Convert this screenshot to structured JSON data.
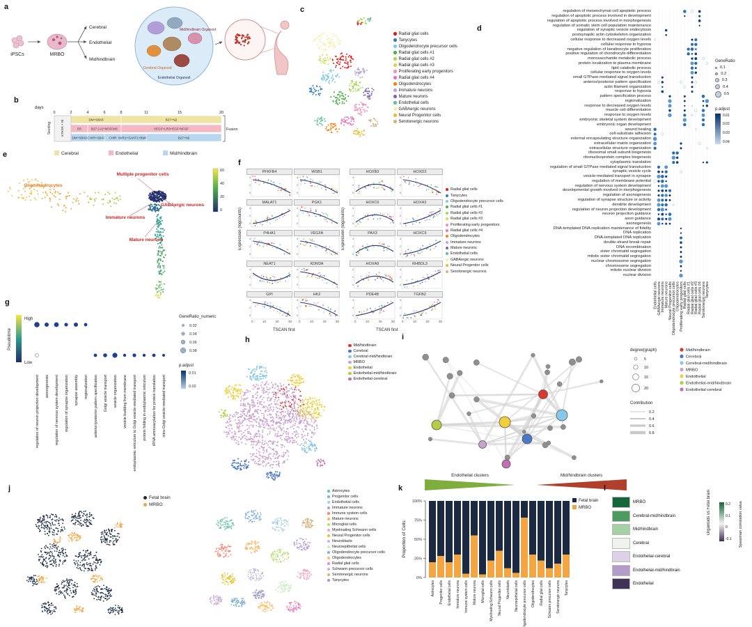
{
  "sample_groups": [
    {
      "label": "Mid/hindbrain",
      "color": "#d93a2b"
    },
    {
      "label": "Cerebral",
      "color": "#4a78c4"
    },
    {
      "label": "Cerebral-mid/hindbrain",
      "color": "#85c8ea"
    },
    {
      "label": "MRBO",
      "color": "#c9a2d0"
    },
    {
      "label": "Endothelial",
      "color": "#f0cf3a"
    },
    {
      "label": "Endothelial-mid/hindbrain",
      "color": "#b5cc45"
    },
    {
      "label": "Endothelial-cerebral",
      "color": "#c06fb0"
    }
  ],
  "cell_types": [
    {
      "label": "Radial glial cells",
      "color": "#e41a1c"
    },
    {
      "label": "Tanycytes",
      "color": "#377eb8"
    },
    {
      "label": "Oligodendrocyte precursor cells",
      "color": "#7fc9e8"
    },
    {
      "label": "Radial glial cells #1",
      "color": "#4daf4a"
    },
    {
      "label": "Radial glial cells #2",
      "color": "#a6d854"
    },
    {
      "label": "Radial glial cells #3",
      "color": "#cddc55"
    },
    {
      "label": "Proliferating early progenitors",
      "color": "#f48fb1"
    },
    {
      "label": "Radial glial cells #4",
      "color": "#e574bc"
    },
    {
      "label": "Oligodendrocytes",
      "color": "#ff7f0e"
    },
    {
      "label": "Immature neurons",
      "color": "#b8a8d8"
    },
    {
      "label": "Mature neurons",
      "color": "#7b68ae"
    },
    {
      "label": "Endothelial cells",
      "color": "#5fbf9f"
    },
    {
      "label": "GABAergic neurons",
      "color": "#f5f0a8"
    },
    {
      "label": "Neural Progenitor cells",
      "color": "#e0c13a"
    },
    {
      "label": "Serotonergic neurons",
      "color": "#d4b483"
    }
  ],
  "panels": {
    "a": {
      "label": "a",
      "ipsc_label": "iPSCs",
      "mrbo_label": "MRBO",
      "branches": [
        "Cerebral",
        "Endothelial",
        "Midhindbrain"
      ],
      "organoid_labels": [
        "Mid/hindbrain Organoid",
        "Cerebral Organoid",
        "Endothelial Organoid"
      ]
    },
    "b": {
      "label": "b",
      "axis_label": "days",
      "day_ticks": [
        0,
        2,
        4,
        6,
        8,
        11,
        15,
        20
      ],
      "seeding_label": "Seeding",
      "pre_segment_label": "mTeSR + Ri",
      "fusion_label": "Fusion",
      "rows": [
        {
          "name": "Cerebral",
          "color": "#efe3a5",
          "segments": [
            {
              "text": "DM+SB43",
              "from": 2,
              "to": 8
            },
            {
              "text": "B27+N2",
              "from": 8,
              "to": 20
            }
          ]
        },
        {
          "name": "Endothelial",
          "color": "#f3bac5",
          "segments": [
            {
              "text": "E6",
              "from": 2,
              "to": 4
            },
            {
              "text": "B27 (-A)+hESFMS",
              "from": 4,
              "to": 8
            },
            {
              "text": "VEGF+LR3+EGF+bFGF",
              "from": 8,
              "to": 20
            }
          ]
        },
        {
          "name": "Mid/hindbrain",
          "color": "#b9d6ef",
          "segments": [
            {
              "text": "DM+SB43",
              "from": 2,
              "to": 4
            },
            {
              "text": "CHIR+SB43",
              "from": 4,
              "to": 6
            },
            {
              "text": "CHIR",
              "from": 6,
              "to": 8
            },
            {
              "text": "IWR1+SANT1+BMP4",
              "from": 8,
              "to": 11
            },
            {
              "text": "B27+N2",
              "from": 11,
              "to": 20
            }
          ]
        }
      ],
      "legend": [
        {
          "label": "Cerebral",
          "color": "#efe3a5"
        },
        {
          "label": "Endothelial",
          "color": "#f3bac5"
        },
        {
          "label": "Mid/hindbrain",
          "color": "#b9d6ef"
        }
      ]
    },
    "c": {
      "label": "c"
    },
    "d": {
      "label": "d",
      "terms": [
        "regulation of mesenchymal cell apoptotic process",
        "regulation of apoptotic process involved in development",
        "regulation of apoptotic process involved in morphogenesis",
        "regulation of somatic stem cell population maintenance",
        "regulation of synaptic vesicle endocytosis",
        "postsynaptic actin cytoskeleton organization",
        "cellular response to decreased oxygen levels",
        "cellular response to hypoxia",
        "negative regulation of keratinocyte proliferation",
        "positive regulation of chondrocyte differentiation",
        "monosaccharide metabolic process",
        "protein localization to plasma membrane",
        "lipid catabolic process",
        "cellular response to oxygen levels",
        "small GTPase-mediated signal transduction",
        "anterior/posterior pattern specification",
        "actin filament organization",
        "response to hypoxia",
        "pattern specification process",
        "regionalization",
        "response to decreased oxygen levels",
        "muscle cell differentiation",
        "response to oxygen levels",
        "embryonic skeletal system development",
        "embryonic organ development",
        "wound healing",
        "cell-substrate adhesion",
        "external encapsulating structure organization",
        "extracellular matrix organization",
        "extracellular structure organization",
        "ribosomal small subunit biogenesis",
        "ribonucleoprotein complex biogenesis",
        "cytoplasmic translation",
        "regulation of small GTPase mediated signal transduction",
        "synaptic vesicle cycle",
        "vesicle-mediated transport in synapse",
        "regulation of membrane potential",
        "regulation of nervous system development",
        "developmental growth involved in morphogenesis",
        "regulation of axonogenesis",
        "regulation of synapse structure or activity",
        "dendrite development",
        "regulation of neuron projection development",
        "neuron projection guidance",
        "axon guidance",
        "axonogenesis",
        "DNA-templated DNA replication maintenance of fidelity",
        "DNA replication",
        "DNA-templated DNA replication",
        "double-strand break repair",
        "DNA recombination",
        "sister chromatid segregation",
        "mitotic sister chromatid segregation",
        "nuclear chromosome segregation",
        "chromosome segregation",
        "mitotic nuclear division",
        "nuclear division"
      ],
      "columns": [
        "Endothelial cells",
        "GABAergic neurons",
        "Immature neurons",
        "Mature neurons",
        "Neural Progenitor cells",
        "Oligodendrocyte precursor cells",
        "Oligodendrocytes",
        "Proliferating early progenitors",
        "Radial glial cells",
        "Radial glial cells #1",
        "Radial glial cells #2",
        "Radial glial cells #3",
        "Radial glial cells #4",
        "Serotonergic neurons",
        "Tanycytes"
      ],
      "gene_ratio_legend": {
        "title": "GeneRatio",
        "values": [
          "0.1",
          "0.2",
          "0.3",
          "0.4",
          "0.5"
        ]
      },
      "p_adjust_legend": {
        "title": "p.adjust",
        "values": [
          "0.01",
          "0.02",
          "0.03",
          "0.04"
        ]
      },
      "blocks": [
        {
          "rows": [
            0,
            3
          ],
          "cols": [
            12
          ]
        },
        {
          "rows": [
            0,
            1
          ],
          "cols": [
            8
          ]
        },
        {
          "rows": [
            4,
            5
          ],
          "cols": [
            3
          ]
        },
        {
          "rows": [
            6,
            13
          ],
          "cols": [
            10,
            11
          ]
        },
        {
          "rows": [
            8,
            9
          ],
          "cols": [
            9
          ]
        },
        {
          "rows": [
            14,
            17
          ],
          "cols": [
            2,
            10
          ]
        },
        {
          "rows": [
            18,
            22
          ],
          "cols": [
            4,
            8,
            13
          ]
        },
        {
          "rows": [
            19,
            20
          ],
          "cols": [
            14
          ]
        },
        {
          "rows": [
            23,
            24
          ],
          "cols": [
            8,
            13
          ]
        },
        {
          "rows": [
            25,
            29
          ],
          "cols": [
            0
          ]
        },
        {
          "rows": [
            28,
            29
          ],
          "cols": [
            7
          ]
        },
        {
          "rows": [
            30,
            32
          ],
          "cols": [
            5,
            6
          ]
        },
        {
          "rows": [
            32,
            32
          ],
          "cols": [
            13,
            14
          ]
        },
        {
          "rows": [
            33,
            36
          ],
          "cols": [
            1,
            3
          ]
        },
        {
          "rows": [
            34,
            36
          ],
          "cols": [
            2
          ]
        },
        {
          "rows": [
            37,
            45
          ],
          "cols": [
            1,
            2,
            3
          ]
        },
        {
          "rows": [
            38,
            40
          ],
          "cols": [
            4
          ]
        },
        {
          "rows": [
            43,
            45
          ],
          "cols": [
            4
          ]
        },
        {
          "rows": [
            46,
            56
          ],
          "cols": [
            7
          ]
        }
      ]
    },
    "e": {
      "label": "e",
      "annotations": [
        {
          "text": "Oligodendrocytes",
          "color": "#e87722"
        },
        {
          "text": "Multiple progenitor cells",
          "color": "#cc2222"
        },
        {
          "text": "GABAergic neurons",
          "color": "#cc2222"
        },
        {
          "text": "Immature neurons",
          "color": "#cc2222"
        },
        {
          "text": "Mature neurons",
          "color": "#cc2222"
        }
      ],
      "colorbar_ticks": [
        "60",
        "40",
        "20",
        "0"
      ]
    },
    "f": {
      "label": "f",
      "left_genes": [
        "PFKFB4",
        "WSB1",
        "MALAT1",
        "PGK1",
        "P4HA1",
        "VEGFA",
        "NEAT1",
        "KDM3A",
        "GPI",
        "HK2"
      ],
      "right_genes": [
        "HOXB3",
        "HOXD3",
        "HOXC6",
        "HOXA3",
        "PAX3",
        "HOXC9",
        "HOXA9",
        "RHBDL3",
        "PDE4B",
        "TGFB2"
      ],
      "ylabel": "Expression (logcounts)",
      "xlabel": "TSCAN first",
      "xticks": [
        "0",
        "10",
        "20",
        "30"
      ]
    },
    "g": {
      "label": "g",
      "pseudotime": {
        "title": "Pseudotime",
        "high": "High",
        "low": "Low"
      },
      "terms": [
        "regulation of neuron projection development",
        "axonogenesis",
        "regulation of nervous system development",
        "regulation of synapse organization",
        "synapse assembly",
        "regionalization",
        "anterior/posterior pattern specification",
        "Golgi vesicle transport",
        "vesicle organization",
        "vesicle budding from membrane",
        "endoplasmic reticulum to Golgi vesicle-mediated transport",
        "protein folding in endoplasmic reticulum",
        "tRNA aminoacylation for protein translation",
        "intra-Golgi vesicle-mediated transport"
      ],
      "dots": [
        [
          0,
          0,
          3.8
        ],
        [
          1,
          0,
          3.0
        ],
        [
          2,
          0,
          3.4
        ],
        [
          3,
          0,
          2.6
        ],
        [
          4,
          0,
          3.0
        ],
        [
          5,
          0,
          2.4
        ],
        [
          6,
          1,
          2.4
        ],
        [
          7,
          1,
          2.8
        ],
        [
          8,
          1,
          3.6
        ],
        [
          9,
          1,
          2.2
        ],
        [
          10,
          1,
          2.6
        ],
        [
          11,
          1,
          2.2
        ],
        [
          12,
          1,
          2.4
        ],
        [
          13,
          1,
          2.0
        ]
      ],
      "gene_ratio_legend": {
        "title": "GeneRatio_numeric",
        "values": [
          "0.02",
          "0.04",
          "0.06",
          "0.08"
        ]
      },
      "p_adjust_legend": {
        "title": "p.adjust",
        "values": [
          "0.01",
          "0.02"
        ]
      }
    },
    "h": {
      "label": "h"
    },
    "i": {
      "label": "i",
      "degree_legend": {
        "title": "degree(graph)",
        "values": [
          "5",
          "10",
          "15",
          "20"
        ]
      },
      "contribution_legend": {
        "title": "Contribution",
        "values": [
          "0.2",
          "0.4",
          "0.6",
          "0.8"
        ]
      },
      "arrows": [
        {
          "text": "Endothelial clusters",
          "color": "#7fae3f"
        },
        {
          "text": "Mid/hindbrain clusters",
          "color": "#b0402c"
        }
      ]
    },
    "j": {
      "label": "j",
      "sample_legend": [
        {
          "label": "Fetal brain",
          "color": "#1b2a41"
        },
        {
          "label": "MRBO",
          "color": "#f2a541"
        }
      ],
      "cell_legend": [
        {
          "label": "Astrocytes",
          "color": "#66c2a5"
        },
        {
          "label": "Progenitor cells",
          "color": "#7bafde"
        },
        {
          "label": "Endothelial cells",
          "color": "#a6cee3"
        },
        {
          "label": "Immature neurons",
          "color": "#b39ddb"
        },
        {
          "label": "Immune system cells",
          "color": "#fb8072"
        },
        {
          "label": "Mature neurons",
          "color": "#fdb462"
        },
        {
          "label": "Microglial cells",
          "color": "#b3de69"
        },
        {
          "label": "Myelinating Schwann cells",
          "color": "#f4a6c8"
        },
        {
          "label": "Neural Progenitor cells",
          "color": "#e6c229"
        },
        {
          "label": "Neuroblasts",
          "color": "#bebada"
        },
        {
          "label": "Neuroepithelial cells",
          "color": "#ccebc5"
        },
        {
          "label": "Oligodendrocyte precursor cells",
          "color": "#80b1d3"
        },
        {
          "label": "Oligodendrocytes",
          "color": "#fdbf6f"
        },
        {
          "label": "Radial glial cells",
          "color": "#e78ac3"
        },
        {
          "label": "Schwann precursor cells",
          "color": "#cab2d6"
        },
        {
          "label": "Serotonergic neurons",
          "color": "#d4b483"
        },
        {
          "label": "Tanycytes",
          "color": "#9e9ac8"
        }
      ]
    },
    "k": {
      "label": "k",
      "ylabel": "Proportion of Cells",
      "yticks": [
        "100%",
        "75%",
        "50%",
        "25%",
        "0%"
      ]
    },
    "l": {
      "label": "l",
      "title": "Organoids vs Fetal brain",
      "rows": [
        {
          "label": "MRBO",
          "color": "#17653a"
        },
        {
          "label": "Cerebral-mid/hindbrain",
          "color": "#4e9b62"
        },
        {
          "label": "Mid/hindbrain",
          "color": "#a5cfa5"
        },
        {
          "label": "Cerebral",
          "color": "#eef3ee"
        },
        {
          "label": "Endothelial-cerebral",
          "color": "#dcd1e6"
        },
        {
          "label": "Endothelial-mid/hindbrain",
          "color": "#b39cc7"
        },
        {
          "label": "Endothelial",
          "color": "#403156"
        }
      ],
      "scale": {
        "title": "Spearman correlation value",
        "ticks": [
          "0.2",
          "0.1",
          "0",
          "-0.1"
        ]
      }
    }
  },
  "chart_data": {
    "type": "bar",
    "stacked": true,
    "title": "Proportion of Cells",
    "ylabel": "Proportion of Cells",
    "ylim": [
      0,
      100
    ],
    "legend_position": "top-right",
    "categories": [
      "Astrocytes",
      "Progenitor cells",
      "Endothelial cells",
      "Immature neurons",
      "Immune system cells",
      "Mature neurons",
      "Microglial cells",
      "Myelinating Schwann cells",
      "Neural Progenitor cells",
      "Neuroblasts",
      "Neuroepithelial cells",
      "Oligodendrocyte precursor cells",
      "Oligodendrocytes",
      "Radial glial cells",
      "Schwann precursor cells",
      "Serotonergic neurons",
      "Tanycytes"
    ],
    "series": [
      {
        "name": "Fetal brain",
        "values": [
          80,
          72,
          80,
          70,
          95,
          45,
          96,
          78,
          65,
          88,
          94,
          22,
          70,
          78,
          88,
          82,
          70
        ]
      },
      {
        "name": "MRBO",
        "values": [
          20,
          28,
          20,
          30,
          5,
          55,
          4,
          22,
          35,
          12,
          6,
          78,
          30,
          22,
          12,
          18,
          30
        ]
      }
    ]
  }
}
